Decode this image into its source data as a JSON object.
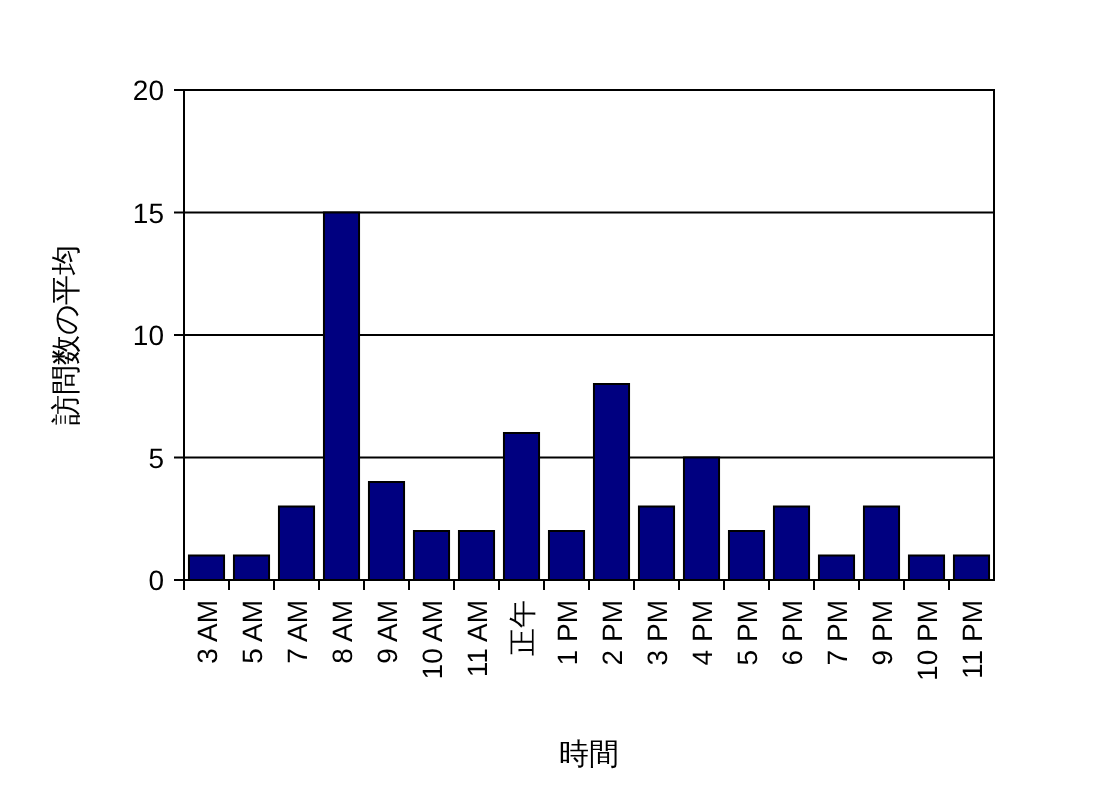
{
  "chart_data": {
    "type": "bar",
    "xlabel": "時間",
    "ylabel": "訪問数の平均",
    "categories": [
      "3 AM",
      "5 AM",
      "7 AM",
      "8 AM",
      "9 AM",
      "10 AM",
      "11 AM",
      "正午",
      "1 PM",
      "2 PM",
      "3 PM",
      "4 PM",
      "5 PM",
      "6 PM",
      "7 PM",
      "9 PM",
      "10 PM",
      "11 PM"
    ],
    "values": [
      1,
      1,
      3,
      15,
      4,
      2,
      2,
      6,
      2,
      8,
      3,
      5,
      2,
      3,
      1,
      3,
      1,
      1
    ],
    "color": "#000080",
    "ylim": [
      0,
      20
    ],
    "yticks": [
      0,
      5,
      10,
      15,
      20
    ],
    "grid": "y"
  }
}
